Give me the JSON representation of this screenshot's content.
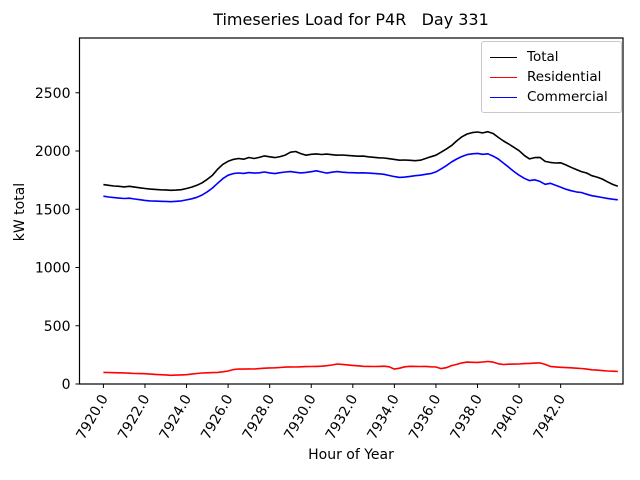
{
  "chart_data": {
    "type": "line",
    "title": "Timeseries Load for P4R   Day 331",
    "xlabel": "Hour of Year",
    "ylabel": "kW total",
    "grid": false,
    "legend_position": "upper right",
    "xlim": [
      7918.85,
      7945.0
    ],
    "ylim": [
      0,
      2970
    ],
    "xticks": [
      7920,
      7922,
      7924,
      7926,
      7928,
      7930,
      7932,
      7934,
      7936,
      7938,
      7940,
      7942
    ],
    "xtick_labels": [
      "7920.0",
      "7922.0",
      "7924.0",
      "7926.0",
      "7928.0",
      "7930.0",
      "7932.0",
      "7934.0",
      "7936.0",
      "7938.0",
      "7940.0",
      "7942.0"
    ],
    "xtick_rotation": 60,
    "yticks": [
      0,
      500,
      1000,
      1500,
      2000,
      2500
    ],
    "ytick_labels": [
      "0",
      "500",
      "1000",
      "1500",
      "2000",
      "2500"
    ],
    "x_start": 7920.0,
    "x_step": 0.25,
    "x_end": 7944.75,
    "series": [
      {
        "name": "Total",
        "color": "#000000",
        "values": [
          1712,
          1706,
          1700,
          1697,
          1692,
          1697,
          1690,
          1684,
          1678,
          1673,
          1670,
          1667,
          1666,
          1663,
          1664,
          1668,
          1678,
          1690,
          1706,
          1727,
          1757,
          1792,
          1845,
          1886,
          1912,
          1928,
          1936,
          1930,
          1944,
          1936,
          1945,
          1958,
          1950,
          1943,
          1952,
          1965,
          1990,
          1996,
          1978,
          1964,
          1972,
          1975,
          1970,
          1973,
          1968,
          1964,
          1966,
          1962,
          1959,
          1955,
          1956,
          1950,
          1946,
          1942,
          1940,
          1934,
          1928,
          1921,
          1923,
          1920,
          1917,
          1921,
          1936,
          1950,
          1964,
          1990,
          2016,
          2046,
          2087,
          2122,
          2146,
          2158,
          2163,
          2155,
          2166,
          2150,
          2117,
          2086,
          2060,
          2032,
          2003,
          1962,
          1932,
          1943,
          1945,
          1911,
          1902,
          1897,
          1899,
          1881,
          1860,
          1841,
          1823,
          1811,
          1788,
          1776,
          1760,
          1736,
          1713,
          1698
        ]
      },
      {
        "name": "Residential",
        "color": "#ff0000",
        "values": [
          100,
          99,
          97,
          96,
          95,
          93,
          90,
          89,
          88,
          85,
          82,
          80,
          78,
          75,
          76,
          78,
          80,
          85,
          90,
          94,
          96,
          98,
          100,
          105,
          112,
          124,
          129,
          128,
          130,
          129,
          132,
          136,
          138,
          139,
          142,
          145,
          147,
          146,
          148,
          149,
          150,
          151,
          153,
          157,
          163,
          172,
          168,
          164,
          160,
          156,
          152,
          151,
          150,
          151,
          153,
          148,
          128,
          136,
          148,
          152,
          151,
          150,
          151,
          148,
          146,
          132,
          140,
          158,
          168,
          181,
          188,
          186,
          185,
          189,
          193,
          188,
          173,
          167,
          170,
          171,
          172,
          175,
          177,
          179,
          181,
          168,
          151,
          147,
          143,
          141,
          139,
          136,
          133,
          128,
          122,
          119,
          115,
          112,
          110,
          108
        ]
      },
      {
        "name": "Commercial",
        "color": "#0000ff",
        "values": [
          1612,
          1605,
          1600,
          1596,
          1592,
          1595,
          1588,
          1582,
          1576,
          1572,
          1570,
          1568,
          1567,
          1565,
          1568,
          1572,
          1580,
          1590,
          1603,
          1622,
          1650,
          1682,
          1724,
          1763,
          1792,
          1806,
          1811,
          1808,
          1815,
          1810,
          1813,
          1820,
          1812,
          1806,
          1814,
          1820,
          1823,
          1817,
          1812,
          1816,
          1822,
          1830,
          1820,
          1810,
          1818,
          1823,
          1818,
          1815,
          1814,
          1812,
          1813,
          1810,
          1808,
          1804,
          1800,
          1790,
          1780,
          1773,
          1776,
          1782,
          1788,
          1792,
          1800,
          1806,
          1821,
          1846,
          1874,
          1906,
          1931,
          1953,
          1969,
          1976,
          1979,
          1972,
          1976,
          1956,
          1931,
          1896,
          1861,
          1824,
          1792,
          1766,
          1746,
          1753,
          1739,
          1714,
          1723,
          1706,
          1690,
          1672,
          1659,
          1649,
          1644,
          1629,
          1616,
          1609,
          1601,
          1593,
          1586,
          1581
        ]
      }
    ]
  }
}
